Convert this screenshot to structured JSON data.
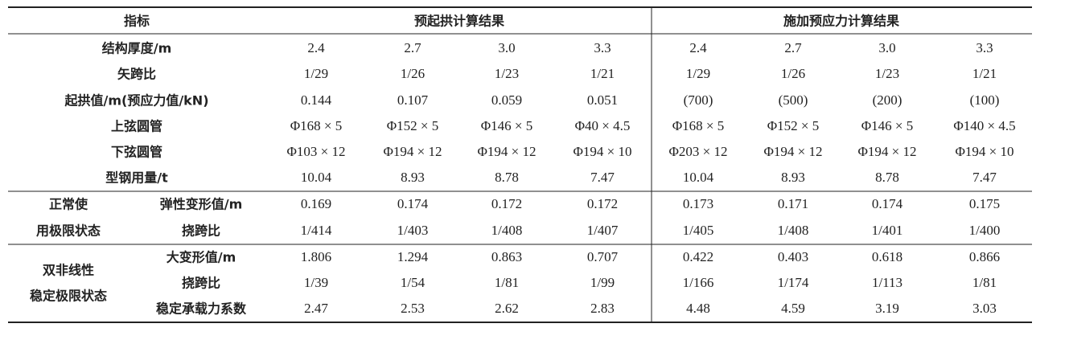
{
  "table": {
    "header": {
      "index": "指标",
      "left": "预起拱计算结果",
      "right": "施加预应力计算结果"
    },
    "rows": [
      {
        "label": "结构厚度/m",
        "values": [
          "2.4",
          "2.7",
          "3.0",
          "3.3",
          "2.4",
          "2.7",
          "3.0",
          "3.3"
        ]
      },
      {
        "label": "矢跨比",
        "values": [
          "1/29",
          "1/26",
          "1/23",
          "1/21",
          "1/29",
          "1/26",
          "1/23",
          "1/21"
        ]
      },
      {
        "label": "起拱值/m(预应力值/kN)",
        "values": [
          "0.144",
          "0.107",
          "0.059",
          "0.051",
          "(700)",
          "(500)",
          "(200)",
          "(100)"
        ]
      },
      {
        "label": "上弦圆管",
        "values": [
          "Φ168 × 5",
          "Φ152 × 5",
          "Φ146 × 5",
          "Φ40 × 4.5",
          "Φ168 × 5",
          "Φ152 × 5",
          "Φ146 × 5",
          "Φ140 × 4.5"
        ]
      },
      {
        "label": "下弦圆管",
        "values": [
          "Φ103 × 12",
          "Φ194 × 12",
          "Φ194 × 12",
          "Φ194 × 10",
          "Φ203 × 12",
          "Φ194 × 12",
          "Φ194 × 12",
          "Φ194 × 10"
        ]
      },
      {
        "label": "型钢用量/t",
        "values": [
          "10.04",
          "8.93",
          "8.78",
          "7.47",
          "10.04",
          "8.93",
          "8.78",
          "7.47"
        ]
      }
    ],
    "groups": [
      {
        "label_lines": [
          "正常使",
          "用极限状态"
        ],
        "rows": [
          {
            "label": "弹性变形值/m",
            "values": [
              "0.169",
              "0.174",
              "0.172",
              "0.172",
              "0.173",
              "0.171",
              "0.174",
              "0.175"
            ]
          },
          {
            "label": "挠跨比",
            "values": [
              "1/414",
              "1/403",
              "1/408",
              "1/407",
              "1/405",
              "1/408",
              "1/401",
              "1/400"
            ]
          }
        ]
      },
      {
        "label_lines": [
          "双非线性",
          "稳定极限状态"
        ],
        "rows": [
          {
            "label": "大变形值/m",
            "values": [
              "1.806",
              "1.294",
              "0.863",
              "0.707",
              "0.422",
              "0.403",
              "0.618",
              "0.866"
            ]
          },
          {
            "label": "挠跨比",
            "values": [
              "1/39",
              "1/54",
              "1/81",
              "1/99",
              "1/166",
              "1/174",
              "1/113",
              "1/81"
            ]
          },
          {
            "label": "稳定承载力系数",
            "values": [
              "2.47",
              "2.53",
              "2.62",
              "2.83",
              "4.48",
              "4.59",
              "3.19",
              "3.03"
            ]
          }
        ]
      }
    ]
  }
}
